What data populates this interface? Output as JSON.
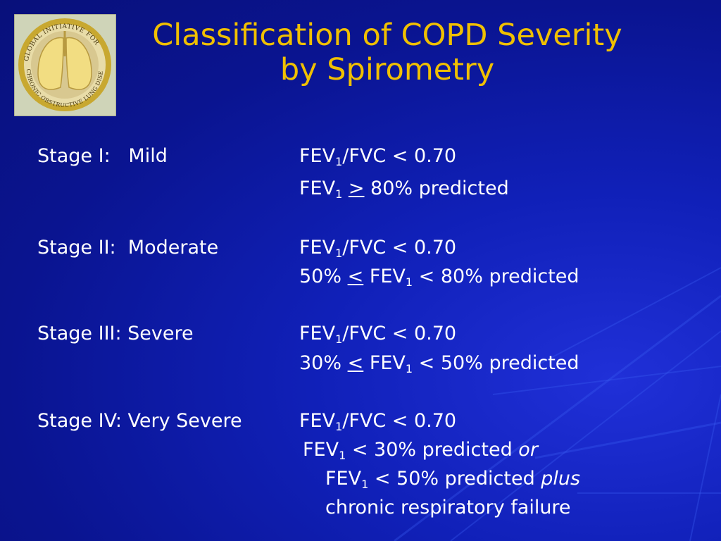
{
  "slide": {
    "title_line1": "Classification of COPD Severity",
    "title_line2": "by Spirometry",
    "logo_text": "GLOBAL INITIATIVE FOR CHRONIC OBSTRUCTIVE LUNG DISEASE™"
  },
  "stages": [
    {
      "label": "Stage I:   Mild",
      "lines": [
        "FEV1/FVC < 0.70",
        "FEV1 > 80% predicted"
      ]
    },
    {
      "label": "Stage II:  Moderate",
      "lines": [
        "FEV1/FVC < 0.70",
        "50% < FEV1 < 80% predicted"
      ]
    },
    {
      "label": "Stage III: Severe",
      "lines": [
        "FEV1/FVC < 0.70",
        "30% < FEV1 < 50% predicted"
      ]
    },
    {
      "label": "Stage IV: Very Severe",
      "lines": [
        "FEV1/FVC < 0.70",
        "FEV1 < 30% predicted or",
        "FEV1 < 50% predicted plus",
        "chronic respiratory failure"
      ]
    }
  ],
  "tokens": {
    "fev": "FEV",
    "sub1": "1",
    "fvc_ratio": "/FVC < 0.70",
    "gte": ">",
    "lte": "<",
    "p80": " 80% predicted",
    "pct50": "50% ",
    "pct30": "30% ",
    "lt80": " < 80% predicted",
    "lt50": " < 50% predicted",
    "lt30": " < 30% predicted ",
    "lt50plus": " < 50% predicted ",
    "or": "or",
    "plus": "plus",
    "failure": "chronic respiratory failure"
  },
  "colors": {
    "background": "#0c1696",
    "title": "#f0c000",
    "text": "#ffffff",
    "logo_gold": "#c8a830"
  }
}
